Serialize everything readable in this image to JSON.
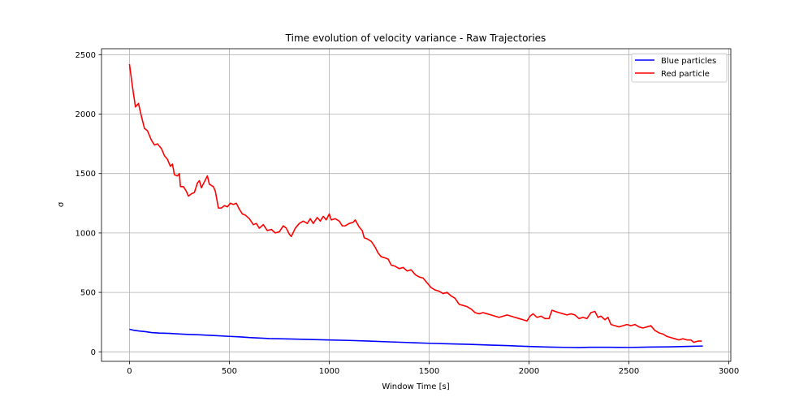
{
  "chart_data": {
    "type": "line",
    "title": "Time evolution of velocity variance - Raw Trajectories",
    "xlabel": "Window Time [s]",
    "ylabel": "σ",
    "xlim": [
      -140,
      3010
    ],
    "ylim": [
      -80,
      2550
    ],
    "xticks": [
      0,
      500,
      1000,
      1500,
      2000,
      2500,
      3000
    ],
    "yticks": [
      0,
      500,
      1000,
      1500,
      2000,
      2500
    ],
    "grid": true,
    "legend_position": "top-right",
    "series": [
      {
        "name": "Blue particles",
        "color": "#0000ff",
        "points": [
          [
            0,
            190
          ],
          [
            20,
            182
          ],
          [
            50,
            175
          ],
          [
            80,
            170
          ],
          [
            110,
            162
          ],
          [
            150,
            158
          ],
          [
            200,
            155
          ],
          [
            250,
            150
          ],
          [
            300,
            146
          ],
          [
            350,
            143
          ],
          [
            400,
            139
          ],
          [
            450,
            135
          ],
          [
            500,
            130
          ],
          [
            550,
            126
          ],
          [
            600,
            120
          ],
          [
            700,
            112
          ],
          [
            800,
            108
          ],
          [
            900,
            104
          ],
          [
            1000,
            100
          ],
          [
            1100,
            96
          ],
          [
            1200,
            90
          ],
          [
            1300,
            84
          ],
          [
            1400,
            78
          ],
          [
            1500,
            72
          ],
          [
            1600,
            67
          ],
          [
            1700,
            63
          ],
          [
            1800,
            57
          ],
          [
            1900,
            52
          ],
          [
            2000,
            45
          ],
          [
            2100,
            40
          ],
          [
            2200,
            37
          ],
          [
            2250,
            36
          ],
          [
            2300,
            38
          ],
          [
            2400,
            38
          ],
          [
            2500,
            37
          ],
          [
            2550,
            38
          ],
          [
            2600,
            40
          ],
          [
            2700,
            42
          ],
          [
            2800,
            46
          ],
          [
            2870,
            49
          ]
        ]
      },
      {
        "name": "Red particle",
        "color": "#ff0000",
        "points": [
          [
            0,
            2420
          ],
          [
            15,
            2230
          ],
          [
            30,
            2060
          ],
          [
            45,
            2090
          ],
          [
            60,
            1980
          ],
          [
            75,
            1880
          ],
          [
            90,
            1860
          ],
          [
            110,
            1780
          ],
          [
            125,
            1740
          ],
          [
            140,
            1750
          ],
          [
            160,
            1710
          ],
          [
            175,
            1650
          ],
          [
            190,
            1620
          ],
          [
            205,
            1560
          ],
          [
            215,
            1580
          ],
          [
            225,
            1490
          ],
          [
            240,
            1480
          ],
          [
            250,
            1500
          ],
          [
            255,
            1390
          ],
          [
            270,
            1390
          ],
          [
            285,
            1350
          ],
          [
            295,
            1310
          ],
          [
            310,
            1330
          ],
          [
            325,
            1340
          ],
          [
            340,
            1420
          ],
          [
            350,
            1440
          ],
          [
            360,
            1380
          ],
          [
            375,
            1430
          ],
          [
            390,
            1480
          ],
          [
            400,
            1410
          ],
          [
            420,
            1390
          ],
          [
            430,
            1350
          ],
          [
            445,
            1210
          ],
          [
            460,
            1210
          ],
          [
            475,
            1230
          ],
          [
            490,
            1220
          ],
          [
            505,
            1250
          ],
          [
            520,
            1240
          ],
          [
            535,
            1250
          ],
          [
            550,
            1200
          ],
          [
            565,
            1160
          ],
          [
            580,
            1150
          ],
          [
            600,
            1120
          ],
          [
            620,
            1070
          ],
          [
            635,
            1080
          ],
          [
            650,
            1040
          ],
          [
            670,
            1070
          ],
          [
            690,
            1020
          ],
          [
            710,
            1030
          ],
          [
            730,
            1000
          ],
          [
            750,
            1010
          ],
          [
            770,
            1060
          ],
          [
            785,
            1040
          ],
          [
            800,
            990
          ],
          [
            810,
            970
          ],
          [
            830,
            1040
          ],
          [
            850,
            1080
          ],
          [
            870,
            1100
          ],
          [
            890,
            1080
          ],
          [
            905,
            1120
          ],
          [
            920,
            1080
          ],
          [
            940,
            1130
          ],
          [
            955,
            1100
          ],
          [
            970,
            1140
          ],
          [
            985,
            1110
          ],
          [
            1000,
            1160
          ],
          [
            1010,
            1110
          ],
          [
            1030,
            1120
          ],
          [
            1050,
            1100
          ],
          [
            1065,
            1060
          ],
          [
            1080,
            1060
          ],
          [
            1100,
            1080
          ],
          [
            1120,
            1090
          ],
          [
            1130,
            1110
          ],
          [
            1150,
            1050
          ],
          [
            1165,
            1020
          ],
          [
            1175,
            960
          ],
          [
            1190,
            950
          ],
          [
            1210,
            930
          ],
          [
            1230,
            880
          ],
          [
            1245,
            830
          ],
          [
            1260,
            800
          ],
          [
            1280,
            790
          ],
          [
            1295,
            780
          ],
          [
            1310,
            730
          ],
          [
            1330,
            720
          ],
          [
            1350,
            700
          ],
          [
            1370,
            710
          ],
          [
            1390,
            680
          ],
          [
            1410,
            690
          ],
          [
            1430,
            650
          ],
          [
            1450,
            630
          ],
          [
            1470,
            620
          ],
          [
            1490,
            580
          ],
          [
            1510,
            540
          ],
          [
            1530,
            520
          ],
          [
            1550,
            510
          ],
          [
            1570,
            490
          ],
          [
            1590,
            500
          ],
          [
            1610,
            470
          ],
          [
            1630,
            450
          ],
          [
            1650,
            400
          ],
          [
            1670,
            390
          ],
          [
            1690,
            380
          ],
          [
            1710,
            360
          ],
          [
            1730,
            330
          ],
          [
            1750,
            320
          ],
          [
            1770,
            330
          ],
          [
            1790,
            320
          ],
          [
            1810,
            310
          ],
          [
            1830,
            300
          ],
          [
            1850,
            290
          ],
          [
            1870,
            300
          ],
          [
            1890,
            310
          ],
          [
            1910,
            300
          ],
          [
            1930,
            290
          ],
          [
            1950,
            280
          ],
          [
            1970,
            270
          ],
          [
            1990,
            260
          ],
          [
            2005,
            300
          ],
          [
            2020,
            320
          ],
          [
            2040,
            290
          ],
          [
            2060,
            300
          ],
          [
            2080,
            280
          ],
          [
            2100,
            280
          ],
          [
            2115,
            350
          ],
          [
            2130,
            340
          ],
          [
            2150,
            330
          ],
          [
            2170,
            320
          ],
          [
            2190,
            310
          ],
          [
            2210,
            320
          ],
          [
            2230,
            310
          ],
          [
            2250,
            280
          ],
          [
            2270,
            290
          ],
          [
            2290,
            280
          ],
          [
            2310,
            330
          ],
          [
            2330,
            340
          ],
          [
            2345,
            290
          ],
          [
            2360,
            300
          ],
          [
            2380,
            270
          ],
          [
            2395,
            290
          ],
          [
            2410,
            230
          ],
          [
            2430,
            220
          ],
          [
            2450,
            210
          ],
          [
            2470,
            220
          ],
          [
            2490,
            230
          ],
          [
            2510,
            220
          ],
          [
            2530,
            230
          ],
          [
            2550,
            210
          ],
          [
            2570,
            200
          ],
          [
            2590,
            210
          ],
          [
            2610,
            220
          ],
          [
            2630,
            180
          ],
          [
            2650,
            160
          ],
          [
            2670,
            150
          ],
          [
            2690,
            130
          ],
          [
            2710,
            120
          ],
          [
            2730,
            110
          ],
          [
            2750,
            100
          ],
          [
            2770,
            110
          ],
          [
            2790,
            100
          ],
          [
            2810,
            100
          ],
          [
            2825,
            80
          ],
          [
            2845,
            90
          ],
          [
            2865,
            90
          ]
        ]
      }
    ]
  }
}
